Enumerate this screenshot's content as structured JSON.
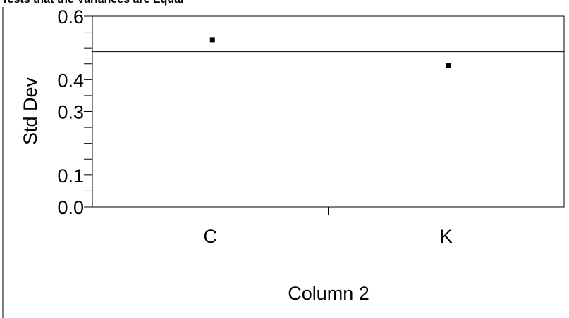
{
  "chart_data": {
    "type": "scatter",
    "title": "Tests that the Variances are Equal",
    "xlabel": "Column 2",
    "ylabel": "Std Dev",
    "categories": [
      "C",
      "K"
    ],
    "series": [
      {
        "values": [
          0.525,
          0.446
        ]
      }
    ],
    "reference_line": 0.488,
    "ylim": [
      0,
      0.6
    ],
    "y_ticks": [
      {
        "value": 0.0,
        "label": "0.0"
      },
      {
        "value": 0.1,
        "label": "0.1"
      },
      {
        "value": 0.3,
        "label": "0.3"
      },
      {
        "value": 0.4,
        "label": "0.4"
      },
      {
        "value": 0.6,
        "label": "0.6"
      }
    ],
    "y_minor_ticks": [
      0.2,
      0.5
    ],
    "grid": false
  }
}
